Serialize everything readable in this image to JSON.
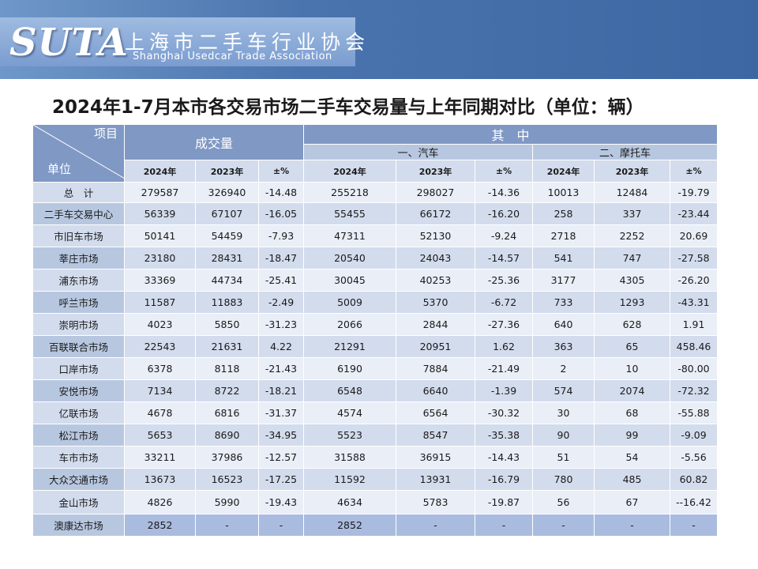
{
  "header": {
    "logo_text": "SUTA",
    "org_name_cn": "上海市二手车行业协会",
    "org_name_en": "Shanghai Usedcar Trade Association"
  },
  "title": "2024年1-7月本市各交易市场二手车交易量与上年同期对比（单位：辆）",
  "table": {
    "corner_top": "项目",
    "corner_bottom": "单位",
    "group_total": "成交量",
    "group_of_which": "其　中",
    "sub_car": "一、汽车",
    "sub_moto": "二、摩托车",
    "col_headers": [
      "2024年",
      "2023年",
      "±%",
      "2024年",
      "2023年",
      "±%",
      "2024年",
      "2023年",
      "±%"
    ],
    "rows": [
      {
        "name": "总　计",
        "values": [
          "279587",
          "326940",
          "-14.48",
          "255218",
          "298027",
          "-14.36",
          "10013",
          "12484",
          "-19.79"
        ]
      },
      {
        "name": "二手车交易中心",
        "values": [
          "56339",
          "67107",
          "-16.05",
          "55455",
          "66172",
          "-16.20",
          "258",
          "337",
          "-23.44"
        ]
      },
      {
        "name": "市旧车市场",
        "values": [
          "50141",
          "54459",
          "-7.93",
          "47311",
          "52130",
          "-9.24",
          "2718",
          "2252",
          "20.69"
        ]
      },
      {
        "name": "莘庄市场",
        "values": [
          "23180",
          "28431",
          "-18.47",
          "20540",
          "24043",
          "-14.57",
          "541",
          "747",
          "-27.58"
        ]
      },
      {
        "name": "浦东市场",
        "values": [
          "33369",
          "44734",
          "-25.41",
          "30045",
          "40253",
          "-25.36",
          "3177",
          "4305",
          "-26.20"
        ]
      },
      {
        "name": "呼兰市场",
        "values": [
          "11587",
          "11883",
          "-2.49",
          "5009",
          "5370",
          "-6.72",
          "733",
          "1293",
          "-43.31"
        ]
      },
      {
        "name": "崇明市场",
        "values": [
          "4023",
          "5850",
          "-31.23",
          "2066",
          "2844",
          "-27.36",
          "640",
          "628",
          "1.91"
        ]
      },
      {
        "name": "百联联合市场",
        "values": [
          "22543",
          "21631",
          "4.22",
          "21291",
          "20951",
          "1.62",
          "363",
          "65",
          "458.46"
        ]
      },
      {
        "name": "口岸市场",
        "values": [
          "6378",
          "8118",
          "-21.43",
          "6190",
          "7884",
          "-21.49",
          "2",
          "10",
          "-80.00"
        ]
      },
      {
        "name": "安悦市场",
        "values": [
          "7134",
          "8722",
          "-18.21",
          "6548",
          "6640",
          "-1.39",
          "574",
          "2074",
          "-72.32"
        ]
      },
      {
        "name": "亿联市场",
        "values": [
          "4678",
          "6816",
          "-31.37",
          "4574",
          "6564",
          "-30.32",
          "30",
          "68",
          "-55.88"
        ]
      },
      {
        "name": "松江市场",
        "values": [
          "5653",
          "8690",
          "-34.95",
          "5523",
          "8547",
          "-35.38",
          "90",
          "99",
          "-9.09"
        ]
      },
      {
        "name": "车市市场",
        "values": [
          "33211",
          "37986",
          "-12.57",
          "31588",
          "36915",
          "-14.43",
          "51",
          "54",
          "-5.56"
        ]
      },
      {
        "name": "大众交通市场",
        "values": [
          "13673",
          "16523",
          "-17.25",
          "11592",
          "13931",
          "-16.79",
          "780",
          "485",
          "60.82"
        ]
      },
      {
        "name": "金山市场",
        "values": [
          "4826",
          "5990",
          "-19.43",
          "4634",
          "5783",
          "-19.87",
          "56",
          "67",
          "--16.42"
        ]
      },
      {
        "name": "澳康达市场",
        "values": [
          "2852",
          "-",
          "-",
          "2852",
          "-",
          "-",
          "-",
          "-",
          "-"
        ]
      }
    ]
  }
}
